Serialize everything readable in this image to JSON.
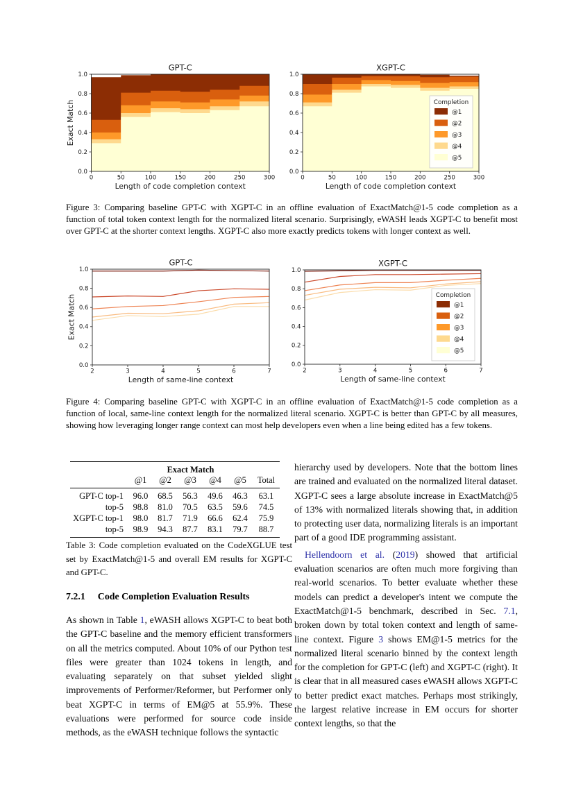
{
  "palette": {
    "@1": "#8c2d04",
    "@2": "#d95f0e",
    "@3": "#fe9929",
    "@4": "#fed98e",
    "@5": "#ffffd4",
    "link": "#2d31a8",
    "axis": "#262626"
  },
  "line_palette": {
    "@1": "#7f1d10",
    "@2": "#cb4a2c",
    "@3": "#ee8454",
    "@4": "#f9bb80",
    "@5": "#fbdcab"
  },
  "figure3": {
    "xlabel": "Length of code completion context",
    "ylabel": "Exact Match",
    "caption": "Figure 3: Comparing baseline GPT-C with XGPT-C in an offline evaluation of ExactMatch@1-5 code completion as a function of total token context length for the normalized literal scenario. Surprisingly, eWASH leads XGPT-C to benefit most over GPT-C at the shorter context lengths. XGPT-C also more exactly predicts tokens with longer context as well.",
    "charts": [
      {
        "key": "fig3_left",
        "title": "GPT-C",
        "type": "stacked_step",
        "xlim": [
          0,
          300
        ],
        "xticks": [
          "0",
          "50",
          "100",
          "150",
          "200",
          "250",
          "300"
        ],
        "yticks": [
          "0.0",
          "0.2",
          "0.4",
          "0.6",
          "0.8",
          "1.0"
        ],
        "bins": [
          0,
          50,
          100,
          150,
          200,
          250,
          300
        ],
        "series": [
          {
            "name": "@1",
            "values": [
              0.97,
              0.99,
              1.0,
              1.0,
              1.0,
              1.0
            ]
          },
          {
            "name": "@2",
            "values": [
              0.53,
              0.81,
              0.83,
              0.82,
              0.84,
              0.88
            ]
          },
          {
            "name": "@3",
            "values": [
              0.4,
              0.68,
              0.72,
              0.71,
              0.74,
              0.78
            ]
          },
          {
            "name": "@4",
            "values": [
              0.33,
              0.6,
              0.65,
              0.64,
              0.67,
              0.72
            ]
          },
          {
            "name": "@5",
            "values": [
              0.29,
              0.56,
              0.61,
              0.6,
              0.63,
              0.67
            ]
          }
        ]
      },
      {
        "key": "fig3_right",
        "title": "XGPT-C",
        "type": "stacked_step",
        "xlim": [
          0,
          300
        ],
        "xticks": [
          "0",
          "50",
          "100",
          "150",
          "200",
          "250",
          "300"
        ],
        "yticks": [
          "0.0",
          "0.2",
          "0.4",
          "0.6",
          "0.8",
          "1.0"
        ],
        "bins": [
          0,
          50,
          100,
          150,
          200,
          250,
          300
        ],
        "series": [
          {
            "name": "@1",
            "values": [
              1.0,
              1.0,
              1.0,
              1.0,
              0.995,
              0.985
            ]
          },
          {
            "name": "@2",
            "values": [
              0.9,
              0.965,
              0.98,
              0.98,
              0.97,
              0.975
            ]
          },
          {
            "name": "@3",
            "values": [
              0.79,
              0.9,
              0.94,
              0.93,
              0.91,
              0.92
            ]
          },
          {
            "name": "@4",
            "values": [
              0.71,
              0.84,
              0.9,
              0.89,
              0.86,
              0.875
            ]
          },
          {
            "name": "@5",
            "values": [
              0.67,
              0.81,
              0.875,
              0.86,
              0.83,
              0.85
            ]
          }
        ],
        "legend": {
          "title": "Completion",
          "entries": [
            "@1",
            "@2",
            "@3",
            "@4",
            "@5"
          ]
        }
      }
    ]
  },
  "figure4": {
    "xlabel": "Length of same-line context",
    "ylabel": "Exact Match",
    "caption": "Figure 4: Comparing baseline GPT-C with XGPT-C in an offline evaluation of ExactMatch@1-5 code completion as a function of local, same-line context length for the normalized literal scenario. XGPT-C is better than GPT-C by all measures, showing how leveraging longer range context can most help developers even when a line being edited has a few tokens.",
    "charts": [
      {
        "key": "fig4_left",
        "title": "GPT-C",
        "type": "line",
        "xlim": [
          2,
          7
        ],
        "xticks": [
          "2",
          "3",
          "4",
          "5",
          "6",
          "7"
        ],
        "yticks": [
          "0.0",
          "0.2",
          "0.4",
          "0.6",
          "0.8",
          "1.0"
        ],
        "x": [
          2,
          3,
          4,
          5,
          6,
          7
        ],
        "series": [
          {
            "name": "@1",
            "values": [
              0.98,
              0.98,
              0.98,
              0.99,
              0.985,
              0.98
            ]
          },
          {
            "name": "@2",
            "values": [
              0.71,
              0.72,
              0.715,
              0.775,
              0.795,
              0.79
            ]
          },
          {
            "name": "@3",
            "values": [
              0.585,
              0.61,
              0.62,
              0.66,
              0.705,
              0.715
            ]
          },
          {
            "name": "@4",
            "values": [
              0.5,
              0.54,
              0.535,
              0.565,
              0.635,
              0.65
            ]
          },
          {
            "name": "@5",
            "values": [
              0.465,
              0.515,
              0.505,
              0.53,
              0.61,
              0.61
            ]
          }
        ]
      },
      {
        "key": "fig4_right",
        "title": "XGPT-C",
        "type": "line",
        "xlim": [
          2,
          7
        ],
        "xticks": [
          "2",
          "3",
          "4",
          "5",
          "6",
          "7"
        ],
        "yticks": [
          "0.0",
          "0.2",
          "0.4",
          "0.6",
          "0.8",
          "1.0"
        ],
        "x": [
          2,
          3,
          4,
          5,
          6,
          7
        ],
        "series": [
          {
            "name": "@1",
            "values": [
              0.985,
              0.99,
              0.995,
              0.995,
              0.995,
              0.995
            ]
          },
          {
            "name": "@2",
            "values": [
              0.87,
              0.93,
              0.95,
              0.95,
              0.955,
              0.96
            ]
          },
          {
            "name": "@3",
            "values": [
              0.78,
              0.84,
              0.865,
              0.865,
              0.89,
              0.91
            ]
          },
          {
            "name": "@4",
            "values": [
              0.73,
              0.795,
              0.815,
              0.81,
              0.85,
              0.875
            ]
          },
          {
            "name": "@5",
            "values": [
              0.68,
              0.76,
              0.79,
              0.785,
              0.835,
              0.855
            ]
          }
        ],
        "legend": {
          "title": "Completion",
          "entries": [
            "@1",
            "@2",
            "@3",
            "@4",
            "@5"
          ]
        }
      }
    ]
  },
  "table3": {
    "header_group": "Exact Match",
    "columns": [
      "@1",
      "@2",
      "@3",
      "@4",
      "@5",
      "Total"
    ],
    "rows": [
      {
        "label": "GPT-C top-1",
        "values": [
          "96.0",
          "68.5",
          "56.3",
          "49.6",
          "46.3",
          "63.1"
        ]
      },
      {
        "label": "top-5",
        "values": [
          "98.8",
          "81.0",
          "70.5",
          "63.5",
          "59.6",
          "74.5"
        ]
      },
      {
        "label": "XGPT-C top-1",
        "values": [
          "98.0",
          "81.7",
          "71.9",
          "66.6",
          "62.4",
          "75.9"
        ]
      },
      {
        "label": "top-5",
        "values": [
          "98.9",
          "94.3",
          "87.7",
          "83.1",
          "79.7",
          "88.7"
        ]
      }
    ],
    "caption": "Table 3: Code completion evaluated on the CodeXGLUE test set by ExactMatch@1-5 and overall EM results for XGPT-C and GPT-C."
  },
  "section": {
    "number": "7.2.1",
    "title": "Code Completion Evaluation Results"
  },
  "left_column": {
    "paragraph": [
      {
        "t": "As shown in Table "
      },
      {
        "t": "1",
        "link": true
      },
      {
        "t": ", eWASH allows XGPT-C to beat both the GPT-C baseline and the memory efficient transformers on all the metrics computed. About 10% of our Python test files were greater than 1024 tokens in length, and evaluating separately on that subset yielded slight improvements of Performer/Reformer, but Performer only beat XGPT-C in terms of EM@5 at 55.9%. These evaluations were performed for source code inside methods, as the eWASH technique follows the syntactic"
      }
    ]
  },
  "right_column": {
    "paragraph1": [
      {
        "t": "hierarchy used by developers. Note that the bottom lines are trained and evaluated on the normalized literal dataset. XGPT-C sees a large absolute increase in ExactMatch@5 of 13% with normalized literals showing that, in addition to protecting user data, normalizing literals is an important part of a good IDE programming assistant."
      }
    ],
    "paragraph2": [
      {
        "t": "Hellendoorn et al.",
        "link": true
      },
      {
        "t": " ("
      },
      {
        "t": "2019",
        "link": true
      },
      {
        "t": ") showed that artificial evaluation scenarios are often much more forgiving than real-world scenarios. To better evaluate whether these models can predict a developer's intent we compute the ExactMatch@1-5 benchmark, described in Sec. "
      },
      {
        "t": "7.1",
        "link": true
      },
      {
        "t": ", broken down by total token context and length of same-line context. Figure "
      },
      {
        "t": "3",
        "link": true
      },
      {
        "t": " shows EM@1-5 metrics for the normalized literal scenario binned by the context length for the completion for GPT-C (left) and XGPT-C (right). It is clear that in all measured cases eWASH allows XGPT-C to better predict exact matches. Perhaps most strikingly, the largest relative increase in EM occurs for shorter context lengths, so that the"
      }
    ]
  }
}
